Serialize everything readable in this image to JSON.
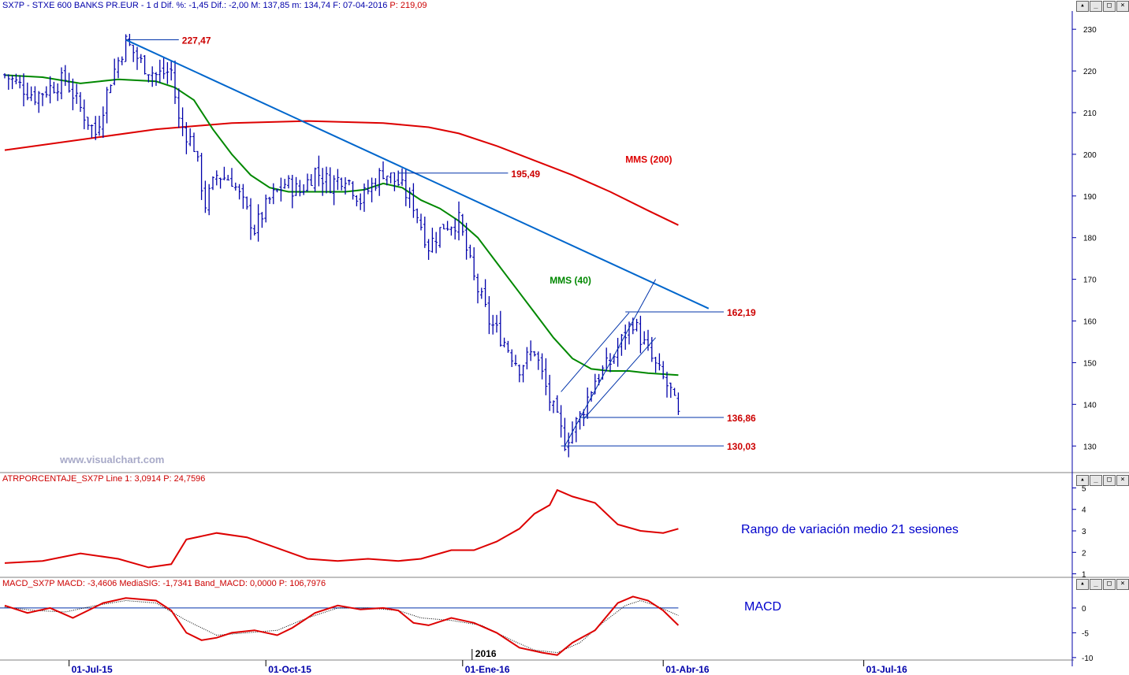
{
  "header": {
    "title": "SX7P - STXE 600 BANKS PR.EUR - 1 d",
    "stats": "Dif. %: -1,45  Dif.: -2,00  M: 137,85  m: 134,74  F: 07-04-2016",
    "last_price": "P: 219,09"
  },
  "window_buttons": [
    "▴",
    "_",
    "□",
    "×"
  ],
  "watermark": "www.visualchart.com",
  "annotations": {
    "atr_note": "Rango de variación medio 21 sesiones",
    "macd_note": "MACD"
  },
  "colors": {
    "price": "#0000aa",
    "mms40": "#008800",
    "mms200": "#dd0000",
    "trendline": "#0066cc",
    "levels": "#0033aa",
    "atr": "#dd0000",
    "macd": "#dd0000",
    "signal": "#000000",
    "axis": "#0000aa"
  },
  "chart_data": [
    {
      "type": "ohlc",
      "title": "SX7P - STXE 600 BANKS PR.EUR",
      "ylim": [
        124,
        234
      ],
      "x_ticks": [
        "01-Jul-15",
        "01-Oct-15",
        "01-Ene-16",
        "01-Abr-16",
        "01-Jul-16"
      ],
      "year_marker": "2016",
      "y_ticks": [
        130,
        140,
        150,
        160,
        170,
        180,
        190,
        200,
        210,
        220,
        230
      ],
      "close_anchors": [
        [
          0,
          219
        ],
        [
          8,
          214
        ],
        [
          16,
          218
        ],
        [
          20,
          211
        ],
        [
          24,
          205
        ],
        [
          28,
          218
        ],
        [
          32,
          227
        ],
        [
          36,
          222
        ],
        [
          40,
          219
        ],
        [
          44,
          220
        ],
        [
          46,
          208
        ],
        [
          50,
          202
        ],
        [
          53,
          188
        ],
        [
          56,
          195
        ],
        [
          60,
          194
        ],
        [
          66,
          182
        ],
        [
          70,
          189
        ],
        [
          74,
          193
        ],
        [
          78,
          191
        ],
        [
          82,
          196
        ],
        [
          86,
          193
        ],
        [
          90,
          195
        ],
        [
          94,
          189
        ],
        [
          100,
          196
        ],
        [
          104,
          193
        ],
        [
          108,
          188
        ],
        [
          112,
          178
        ],
        [
          116,
          183
        ],
        [
          120,
          184
        ],
        [
          124,
          170
        ],
        [
          128,
          160
        ],
        [
          132,
          155
        ],
        [
          136,
          149
        ],
        [
          140,
          153
        ],
        [
          144,
          141
        ],
        [
          148,
          131
        ],
        [
          152,
          137
        ],
        [
          156,
          146
        ],
        [
          160,
          150
        ],
        [
          164,
          157
        ],
        [
          166,
          160
        ],
        [
          168,
          156
        ],
        [
          172,
          149
        ],
        [
          176,
          143
        ],
        [
          178,
          137
        ]
      ],
      "series": [
        {
          "name": "MMS (200)",
          "x": [
            0,
            20,
            40,
            60,
            80,
            100,
            112,
            120,
            130,
            140,
            150,
            160,
            170,
            178
          ],
          "values": [
            201,
            203.5,
            206,
            207.5,
            208,
            207.5,
            206.5,
            205,
            202,
            198.5,
            195,
            191,
            186.5,
            183
          ]
        },
        {
          "name": "MMS (40)",
          "x": [
            0,
            10,
            20,
            30,
            40,
            45,
            50,
            55,
            60,
            65,
            70,
            75,
            80,
            85,
            90,
            95,
            100,
            105,
            110,
            115,
            120,
            125,
            130,
            135,
            140,
            145,
            150,
            155,
            160,
            165,
            170,
            178
          ],
          "values": [
            219,
            218.5,
            217,
            218,
            217.5,
            216,
            213,
            206,
            200,
            195,
            192,
            191,
            191,
            191,
            191,
            191.5,
            193,
            192,
            189,
            187,
            184,
            180,
            174,
            168,
            162,
            156,
            151,
            148.5,
            148,
            148,
            147.5,
            147
          ]
        }
      ],
      "trendlines": [
        {
          "x1": 32,
          "y1": 227.47,
          "x2": 186,
          "y2": 163
        },
        {
          "x1": 148,
          "y1": 130.03,
          "x2": 172,
          "y2": 170
        },
        {
          "x1": 153,
          "y1": 136.5,
          "x2": 172,
          "y2": 156
        },
        {
          "x1": 147,
          "y1": 143,
          "x2": 165,
          "y2": 162
        }
      ],
      "levels": [
        {
          "label": "227,47",
          "value": 227.47,
          "x1": 32,
          "x2": 46
        },
        {
          "label": "195,49",
          "value": 195.49,
          "x1": 104,
          "x2": 133
        },
        {
          "label": "162,19",
          "value": 162.19,
          "x1": 164,
          "x2": 190
        },
        {
          "label": "136,86",
          "value": 136.86,
          "x1": 152,
          "x2": 190
        },
        {
          "label": "130,03",
          "value": 130.03,
          "x1": 147,
          "x2": 190
        }
      ],
      "series_labels": [
        {
          "name": "MMS (200)",
          "x": 164,
          "y": 198
        },
        {
          "name": "MMS (40)",
          "x": 144,
          "y": 169
        }
      ]
    },
    {
      "type": "line",
      "title": "ATRPORCENTAJE_SX7P",
      "legend": "ATRPORCENTAJE_SX7P Line 1: 3,0914  P: 24,7596",
      "ylim": [
        0.8,
        5.2
      ],
      "y_ticks": [
        1,
        2,
        3,
        4,
        5
      ],
      "series": [
        {
          "name": "Line 1",
          "x": [
            0,
            10,
            20,
            30,
            38,
            44,
            48,
            56,
            64,
            72,
            80,
            88,
            96,
            104,
            110,
            118,
            124,
            130,
            136,
            140,
            144,
            146,
            150,
            156,
            162,
            168,
            174,
            178
          ],
          "values": [
            1.5,
            1.6,
            1.95,
            1.7,
            1.3,
            1.45,
            2.6,
            2.9,
            2.7,
            2.2,
            1.7,
            1.6,
            1.7,
            1.6,
            1.7,
            2.1,
            2.1,
            2.5,
            3.1,
            3.8,
            4.2,
            4.9,
            4.6,
            4.3,
            3.3,
            3.0,
            2.9,
            3.1
          ]
        }
      ]
    },
    {
      "type": "line",
      "title": "MACD_SX7P",
      "legend": "MACD_SX7P MACD: -3,4606  MediaSIG: -1,7341  Band_MACD: 0,0000  P: 106,7976",
      "ylim": [
        -10.5,
        3.8
      ],
      "y_ticks": [
        0,
        -5,
        -10
      ],
      "series": [
        {
          "name": "MACD",
          "x": [
            0,
            6,
            12,
            18,
            22,
            26,
            32,
            40,
            44,
            48,
            52,
            56,
            60,
            66,
            72,
            76,
            82,
            88,
            94,
            100,
            104,
            108,
            112,
            118,
            124,
            130,
            136,
            142,
            146,
            150,
            156,
            162,
            166,
            170,
            174,
            178
          ],
          "values": [
            0.5,
            -1,
            0,
            -2,
            -0.5,
            1,
            2,
            1.5,
            -0.5,
            -5,
            -6.5,
            -6,
            -5,
            -4.5,
            -5.5,
            -4,
            -1,
            0.5,
            -0.3,
            0,
            -0.5,
            -3,
            -3.5,
            -2,
            -3,
            -5,
            -8,
            -9,
            -9.5,
            -7,
            -4.5,
            1,
            2.3,
            1.5,
            -0.5,
            -3.5
          ]
        },
        {
          "name": "MediaSIG",
          "x": [
            0,
            8,
            16,
            24,
            32,
            40,
            48,
            56,
            64,
            72,
            80,
            88,
            96,
            104,
            110,
            118,
            126,
            134,
            140,
            146,
            152,
            158,
            164,
            168,
            172,
            178
          ],
          "values": [
            0.2,
            -0.5,
            -0.8,
            0.5,
            1.5,
            1,
            -2.5,
            -5.5,
            -5,
            -4.5,
            -2,
            0,
            0,
            -0.5,
            -2,
            -2.5,
            -3.5,
            -6.5,
            -8.5,
            -9,
            -7,
            -3,
            0.5,
            1.5,
            0.5,
            -1.5
          ]
        }
      ]
    }
  ]
}
